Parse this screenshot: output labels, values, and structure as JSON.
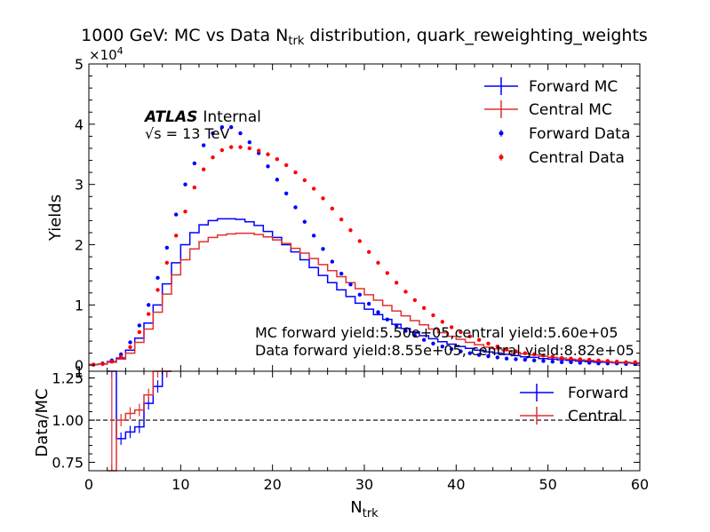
{
  "chart_data": [
    {
      "type": "line",
      "panel": "main",
      "title": "1000 GeV: MC vs Data N",
      "title_subscript": "trk",
      "title_suffix": " distribution, quark_reweighting_weights",
      "ylabel": "Yields",
      "y_multiplier_text": "×10",
      "y_multiplier_exp": "4",
      "xlim": [
        0,
        60
      ],
      "ylim": [
        -0.1,
        5
      ],
      "y_unit": "×10^4",
      "yticks": [
        0,
        1,
        2,
        3,
        4,
        5
      ],
      "ytick_labels": [
        "0",
        "1",
        "2",
        "3",
        "4",
        "5"
      ],
      "legend_position": "top-right",
      "atlas_label": "ATLAS",
      "atlas_status": "Internal",
      "energy_label": "√s = 13 TeV",
      "annotation_mc": "MC forward yield:5.50e+05,central yield:5.60e+05",
      "annotation_data": "Data forward yield:8.55e+05, central yield:8.82e+05",
      "bin_edges": [
        0,
        1,
        2,
        3,
        4,
        5,
        6,
        7,
        8,
        9,
        10,
        11,
        12,
        13,
        14,
        15,
        16,
        17,
        18,
        19,
        20,
        21,
        22,
        23,
        24,
        25,
        26,
        27,
        28,
        29,
        30,
        31,
        32,
        33,
        34,
        35,
        36,
        37,
        38,
        39,
        40,
        41,
        42,
        43,
        44,
        45,
        46,
        47,
        48,
        49,
        50,
        51,
        52,
        53,
        54,
        55,
        56,
        57,
        58,
        59,
        60
      ],
      "series": [
        {
          "name": "Forward MC",
          "kind": "step",
          "color": "#0000ff",
          "values": [
            0.01,
            0.02,
            0.06,
            0.12,
            0.25,
            0.45,
            0.7,
            1.0,
            1.35,
            1.7,
            2.0,
            2.2,
            2.33,
            2.4,
            2.43,
            2.43,
            2.42,
            2.38,
            2.32,
            2.22,
            2.12,
            2.0,
            1.88,
            1.75,
            1.62,
            1.49,
            1.37,
            1.25,
            1.14,
            1.03,
            0.93,
            0.84,
            0.76,
            0.68,
            0.61,
            0.55,
            0.49,
            0.44,
            0.39,
            0.35,
            0.31,
            0.28,
            0.25,
            0.22,
            0.2,
            0.18,
            0.16,
            0.14,
            0.13,
            0.11,
            0.1,
            0.09,
            0.08,
            0.07,
            0.06,
            0.05,
            0.05,
            0.04,
            0.04,
            0.03
          ]
        },
        {
          "name": "Central MC",
          "kind": "step",
          "color": "#e03030",
          "values": [
            0.01,
            0.02,
            0.05,
            0.1,
            0.2,
            0.38,
            0.6,
            0.88,
            1.18,
            1.5,
            1.75,
            1.93,
            2.05,
            2.12,
            2.16,
            2.18,
            2.19,
            2.19,
            2.17,
            2.13,
            2.08,
            2.02,
            1.94,
            1.86,
            1.77,
            1.67,
            1.57,
            1.47,
            1.37,
            1.27,
            1.17,
            1.08,
            0.99,
            0.9,
            0.82,
            0.74,
            0.67,
            0.6,
            0.54,
            0.48,
            0.43,
            0.38,
            0.34,
            0.3,
            0.27,
            0.24,
            0.21,
            0.19,
            0.17,
            0.15,
            0.13,
            0.12,
            0.1,
            0.09,
            0.08,
            0.07,
            0.06,
            0.05,
            0.05,
            0.04
          ]
        },
        {
          "name": "Forward Data",
          "kind": "points",
          "color": "#0000ff",
          "values": [
            0.01,
            0.03,
            0.08,
            0.18,
            0.38,
            0.66,
            1.0,
            1.45,
            1.95,
            2.5,
            3.0,
            3.35,
            3.65,
            3.85,
            3.95,
            3.95,
            3.85,
            3.7,
            3.52,
            3.3,
            3.08,
            2.85,
            2.62,
            2.38,
            2.15,
            1.93,
            1.72,
            1.52,
            1.34,
            1.17,
            1.02,
            0.88,
            0.76,
            0.66,
            0.57,
            0.49,
            0.42,
            0.36,
            0.31,
            0.27,
            0.23,
            0.2,
            0.17,
            0.15,
            0.13,
            0.11,
            0.1,
            0.09,
            0.08,
            0.07,
            0.06,
            0.05,
            0.05,
            0.04,
            0.04,
            0.03,
            0.03,
            0.03,
            0.02,
            0.02
          ]
        },
        {
          "name": "Central Data",
          "kind": "points",
          "color": "#ff0000",
          "values": [
            0.01,
            0.02,
            0.06,
            0.14,
            0.3,
            0.55,
            0.85,
            1.25,
            1.7,
            2.15,
            2.55,
            2.95,
            3.25,
            3.45,
            3.57,
            3.62,
            3.62,
            3.6,
            3.56,
            3.5,
            3.42,
            3.32,
            3.2,
            3.07,
            2.93,
            2.77,
            2.6,
            2.42,
            2.24,
            2.06,
            1.88,
            1.7,
            1.53,
            1.37,
            1.22,
            1.08,
            0.95,
            0.83,
            0.72,
            0.63,
            0.55,
            0.48,
            0.42,
            0.36,
            0.31,
            0.27,
            0.23,
            0.2,
            0.18,
            0.16,
            0.14,
            0.12,
            0.11,
            0.1,
            0.09,
            0.08,
            0.07,
            0.06,
            0.05,
            0.05
          ]
        }
      ]
    },
    {
      "type": "line",
      "panel": "ratio",
      "ylabel": "Data/MC",
      "xlabel": "N",
      "xlabel_subscript": "trk",
      "xlim": [
        0,
        60
      ],
      "ylim": [
        0.7,
        1.29
      ],
      "xticks": [
        0,
        10,
        20,
        30,
        40,
        50,
        60
      ],
      "xtick_labels": [
        "0",
        "10",
        "20",
        "30",
        "40",
        "50",
        "60"
      ],
      "yticks": [
        0.75,
        1.0,
        1.25
      ],
      "ytick_labels": [
        "0.75",
        "1.00",
        "1.25"
      ],
      "reference_line": 1.0,
      "legend_position": "top-right",
      "series": [
        {
          "name": "Forward",
          "kind": "step",
          "color": "#0000ff",
          "values": [
            null,
            null,
            1.3,
            0.89,
            0.93,
            0.96,
            1.1,
            1.2,
            1.35,
            null
          ]
        },
        {
          "name": "Central",
          "kind": "step",
          "color": "#e03030",
          "values": [
            null,
            null,
            0.5,
            1.0,
            1.04,
            1.06,
            1.15,
            1.29,
            1.32,
            null
          ]
        }
      ]
    }
  ]
}
